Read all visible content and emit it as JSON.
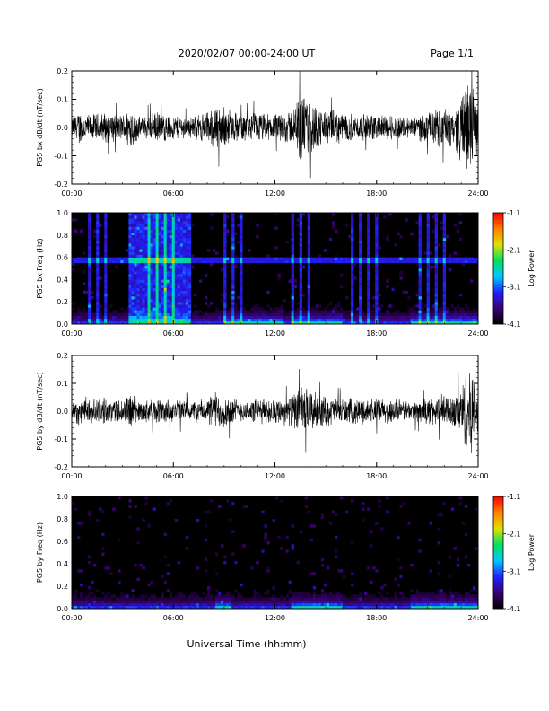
{
  "header": {
    "title": "2020/02/07  00:00-24:00 UT",
    "page": "Page 1/1"
  },
  "xaxis": {
    "label": "Universal Time (hh:mm)",
    "range": [
      0,
      24
    ],
    "ticks": [
      0,
      6,
      12,
      18,
      24
    ],
    "tick_labels": [
      "00:00",
      "06:00",
      "12:00",
      "18:00",
      "24:00"
    ]
  },
  "colorbar": {
    "label": "Log Power",
    "range": [
      -4.1,
      -1.1
    ],
    "ticks": [
      -1.1,
      -2.1,
      -3.1,
      -4.1
    ],
    "tick_labels": [
      "-1.1",
      "-2.1",
      "-3.1",
      "-4.1"
    ],
    "colors": [
      "#000000",
      "#3a0070",
      "#2020ff",
      "#00c8ff",
      "#00e060",
      "#e0e000",
      "#ff8000",
      "#ff0000"
    ]
  },
  "chart_data": [
    {
      "type": "line",
      "ylabel": "PG5 bx dB/dt (nT/sec)",
      "ylim": [
        -0.2,
        0.2
      ],
      "yticks": [
        -0.2,
        -0.1,
        0.0,
        0.1,
        0.2
      ],
      "ytick_labels": [
        "-0.2",
        "-0.1",
        "0.0",
        "0.1",
        "0.2"
      ],
      "line_color": "#000000",
      "envelope": {
        "hours": [
          0,
          0.5,
          1,
          2,
          3,
          3.5,
          4,
          5,
          6,
          7,
          8,
          8.5,
          9,
          10,
          11,
          12,
          13,
          13.5,
          14,
          14.5,
          15,
          16,
          17,
          18,
          19,
          20,
          21,
          22,
          22.5,
          23,
          23.5,
          24
        ],
        "amplitude": [
          0.04,
          0.07,
          0.05,
          0.06,
          0.05,
          0.09,
          0.04,
          0.06,
          0.05,
          0.04,
          0.06,
          0.09,
          0.08,
          0.05,
          0.06,
          0.05,
          0.07,
          0.13,
          0.12,
          0.08,
          0.07,
          0.06,
          0.05,
          0.05,
          0.05,
          0.04,
          0.06,
          0.08,
          0.07,
          0.13,
          0.2,
          0.08
        ]
      }
    },
    {
      "type": "heatmap",
      "ylabel": "PG5 bx Freq (Hz)",
      "ylim": [
        0.0,
        1.0
      ],
      "yticks": [
        0.0,
        0.2,
        0.4,
        0.6,
        0.8,
        1.0
      ],
      "ytick_labels": [
        "0.0",
        "0.2",
        "0.4",
        "0.6",
        "0.8",
        "1.0"
      ],
      "zlim": [
        -4.1,
        -1.1
      ],
      "features": {
        "persistent_line_hz": 0.57,
        "vertical_stripe_spacing_h": 0.5,
        "broadband_noise_hours": [
          3.3,
          7.0
        ],
        "low_freq_enhancement_hours": [
          [
            9.0,
            12.5
          ],
          [
            13.0,
            16.0
          ],
          [
            20.0,
            24.0
          ]
        ]
      }
    },
    {
      "type": "line",
      "ylabel": "PG5 by dB/dt (nT/sec)",
      "ylim": [
        -0.2,
        0.2
      ],
      "yticks": [
        -0.2,
        -0.1,
        0.0,
        0.1,
        0.2
      ],
      "ytick_labels": [
        "-0.2",
        "-0.1",
        "0.0",
        "0.1",
        "0.2"
      ],
      "line_color": "#000000",
      "envelope": {
        "hours": [
          0,
          0.5,
          1,
          2,
          3,
          3.5,
          4,
          5,
          6,
          7,
          8,
          8.5,
          9,
          10,
          11,
          12,
          13,
          13.5,
          14,
          14.5,
          15,
          16,
          17,
          18,
          19,
          20,
          21,
          22,
          22.5,
          23,
          23.5,
          24
        ],
        "amplitude": [
          0.04,
          0.06,
          0.05,
          0.05,
          0.05,
          0.08,
          0.04,
          0.05,
          0.05,
          0.04,
          0.05,
          0.08,
          0.07,
          0.04,
          0.05,
          0.05,
          0.06,
          0.1,
          0.09,
          0.07,
          0.06,
          0.05,
          0.05,
          0.05,
          0.05,
          0.04,
          0.05,
          0.07,
          0.06,
          0.1,
          0.2,
          0.08
        ]
      }
    },
    {
      "type": "heatmap",
      "ylabel": "PG5 by Freq (Hz)",
      "ylim": [
        0.0,
        1.0
      ],
      "yticks": [
        0.0,
        0.2,
        0.4,
        0.6,
        0.8,
        1.0
      ],
      "ytick_labels": [
        "0.0",
        "0.2",
        "0.4",
        "0.6",
        "0.8",
        "1.0"
      ],
      "zlim": [
        -4.1,
        -1.1
      ],
      "features": {
        "persistent_line_hz": null,
        "vertical_stripe_spacing_h": null,
        "broadband_noise_hours": null,
        "low_freq_enhancement_hours": [
          [
            8.5,
            9.5
          ],
          [
            13.0,
            16.0
          ],
          [
            20.0,
            24.0
          ]
        ]
      }
    }
  ]
}
